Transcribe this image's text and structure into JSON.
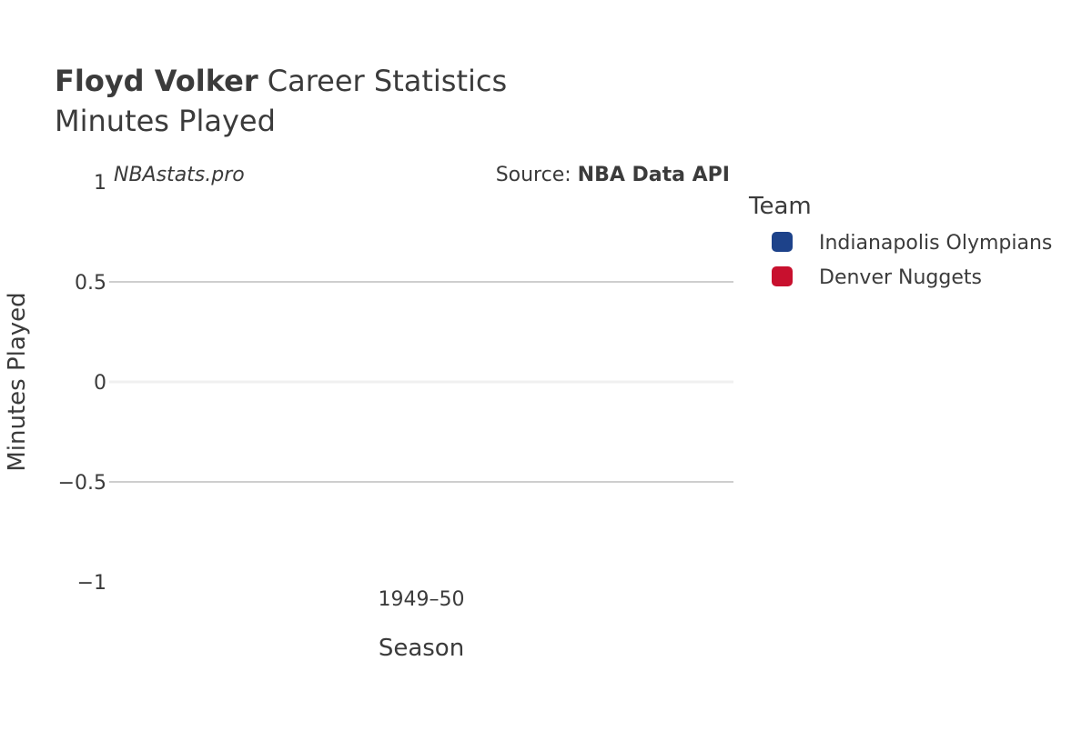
{
  "title": {
    "player": "Floyd Volker",
    "rest": " Career Statistics",
    "subtitle": "Minutes Played"
  },
  "watermark": "NBAstats.pro",
  "source": {
    "prefix": "Source: ",
    "name": "NBA Data API"
  },
  "legend": {
    "title": "Team",
    "items": [
      {
        "label": "Indianapolis Olympians",
        "color": "#1d428a"
      },
      {
        "label": "Denver Nuggets",
        "color": "#c8102e"
      }
    ]
  },
  "colors": {
    "text": "#3b3b3b",
    "grid": "#bdbdbd",
    "zeroline": "#f0f0f0"
  },
  "chart_data": {
    "type": "bar",
    "title": "Floyd Volker Career Statistics",
    "subtitle": "Minutes Played",
    "xlabel": "Season",
    "ylabel": "Minutes Played",
    "categories": [
      "1949–50"
    ],
    "series": [
      {
        "name": "Indianapolis Olympians",
        "values": [
          0
        ]
      },
      {
        "name": "Denver Nuggets",
        "values": [
          0
        ]
      }
    ],
    "ylim": [
      -1,
      1
    ],
    "yticks": [
      {
        "value": 1,
        "label": "1"
      },
      {
        "value": 0.5,
        "label": "0.5"
      },
      {
        "value": 0,
        "label": "0"
      },
      {
        "value": -0.5,
        "label": "−0.5"
      },
      {
        "value": -1,
        "label": "−1"
      }
    ],
    "grid": true,
    "legend_position": "right"
  }
}
